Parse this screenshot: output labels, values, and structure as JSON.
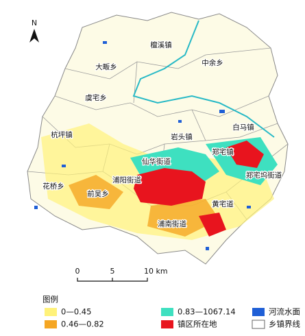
{
  "north": "N",
  "places": [
    {
      "label": "檀溪镇"
    },
    {
      "label": "中余乡"
    },
    {
      "label": "大畈乡"
    },
    {
      "label": "虞宅乡"
    },
    {
      "label": "杭坪镇"
    },
    {
      "label": "白马镇"
    },
    {
      "label": "岩头镇"
    },
    {
      "label": "郑宅镇"
    },
    {
      "label": "仙华街道"
    },
    {
      "label": "郑宅坞街道"
    },
    {
      "label": "浦阳街道"
    },
    {
      "label": "花桥乡"
    },
    {
      "label": "前吴乡"
    },
    {
      "label": "黄宅道"
    },
    {
      "label": "浦南街道"
    }
  ],
  "scale_bar": {
    "ticks": [
      "0",
      "5",
      "10 km"
    ]
  },
  "legend": {
    "title": "图例",
    "items": [
      {
        "label": "0—0.45",
        "color": "#fff27a"
      },
      {
        "label": "0.83—1067.14",
        "color": "#3ee0c0"
      },
      {
        "label": "河流水面",
        "color": "#1f5fd6"
      },
      {
        "label": "0.46—0.82",
        "color": "#f5a623"
      },
      {
        "label": "镇区所在地",
        "color": "#e8141e"
      },
      {
        "label": "乡镇界线",
        "color": "#ffffff"
      }
    ]
  }
}
